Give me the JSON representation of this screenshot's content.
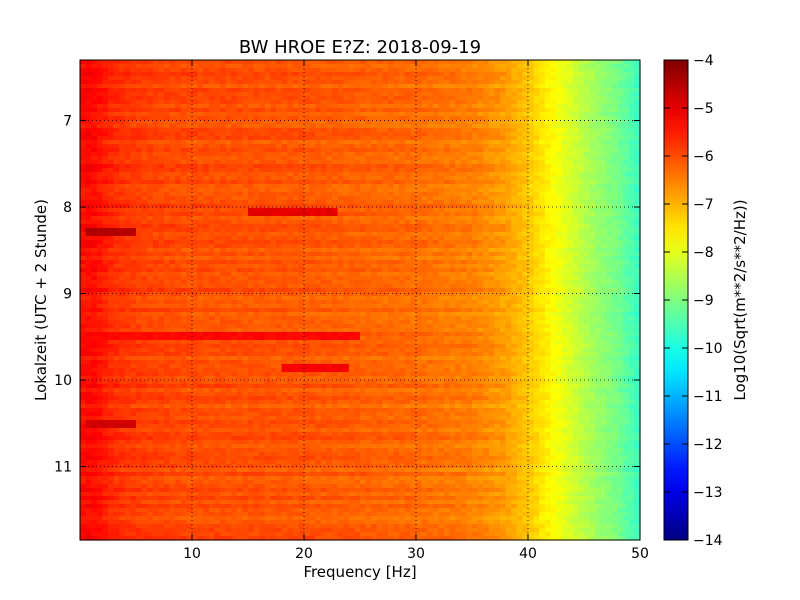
{
  "chart_data": {
    "type": "heatmap",
    "title": "BW HROE E?Z: 2018-09-19",
    "xlabel": "Frequency [Hz]",
    "ylabel": "Lokalzeit (UTC + 2 Stunde)",
    "xlim": [
      0,
      50
    ],
    "ylim": [
      6.3,
      11.85
    ],
    "y_inverted": true,
    "x_ticks": [
      10,
      20,
      30,
      40,
      50
    ],
    "y_ticks": [
      7,
      8,
      9,
      10,
      11
    ],
    "grid": true,
    "grid_style": "dotted",
    "colormap": "jet",
    "colorbar": {
      "label": "Log10(Sqrt(m**2/s**2/Hz))",
      "range": [
        -14,
        -4
      ],
      "ticks": [
        -4,
        -5,
        -6,
        -7,
        -8,
        -9,
        -10,
        -11,
        -12,
        -13,
        -14
      ]
    },
    "spectrum_profile": {
      "frequency_hz": [
        0,
        1,
        3,
        6,
        10,
        20,
        30,
        35,
        38,
        40,
        42,
        44,
        46,
        48,
        50
      ],
      "log_amplitude": [
        -5.4,
        -5.3,
        -5.7,
        -5.9,
        -6.0,
        -6.1,
        -6.3,
        -6.5,
        -6.8,
        -7.2,
        -7.7,
        -8.2,
        -8.7,
        -9.1,
        -9.7
      ]
    },
    "strong_bands": [
      {
        "time": 8.3,
        "freq_range": [
          0.5,
          5
        ],
        "log_amplitude": -4.5
      },
      {
        "time": 8.05,
        "freq_range": [
          15,
          23
        ],
        "log_amplitude": -5.0
      },
      {
        "time": 9.5,
        "freq_range": [
          0.5,
          25
        ],
        "log_amplitude": -5.3
      },
      {
        "time": 9.85,
        "freq_range": [
          18,
          24
        ],
        "log_amplitude": -5.2
      },
      {
        "time": 10.5,
        "freq_range": [
          0.5,
          5
        ],
        "log_amplitude": -4.8
      }
    ]
  }
}
